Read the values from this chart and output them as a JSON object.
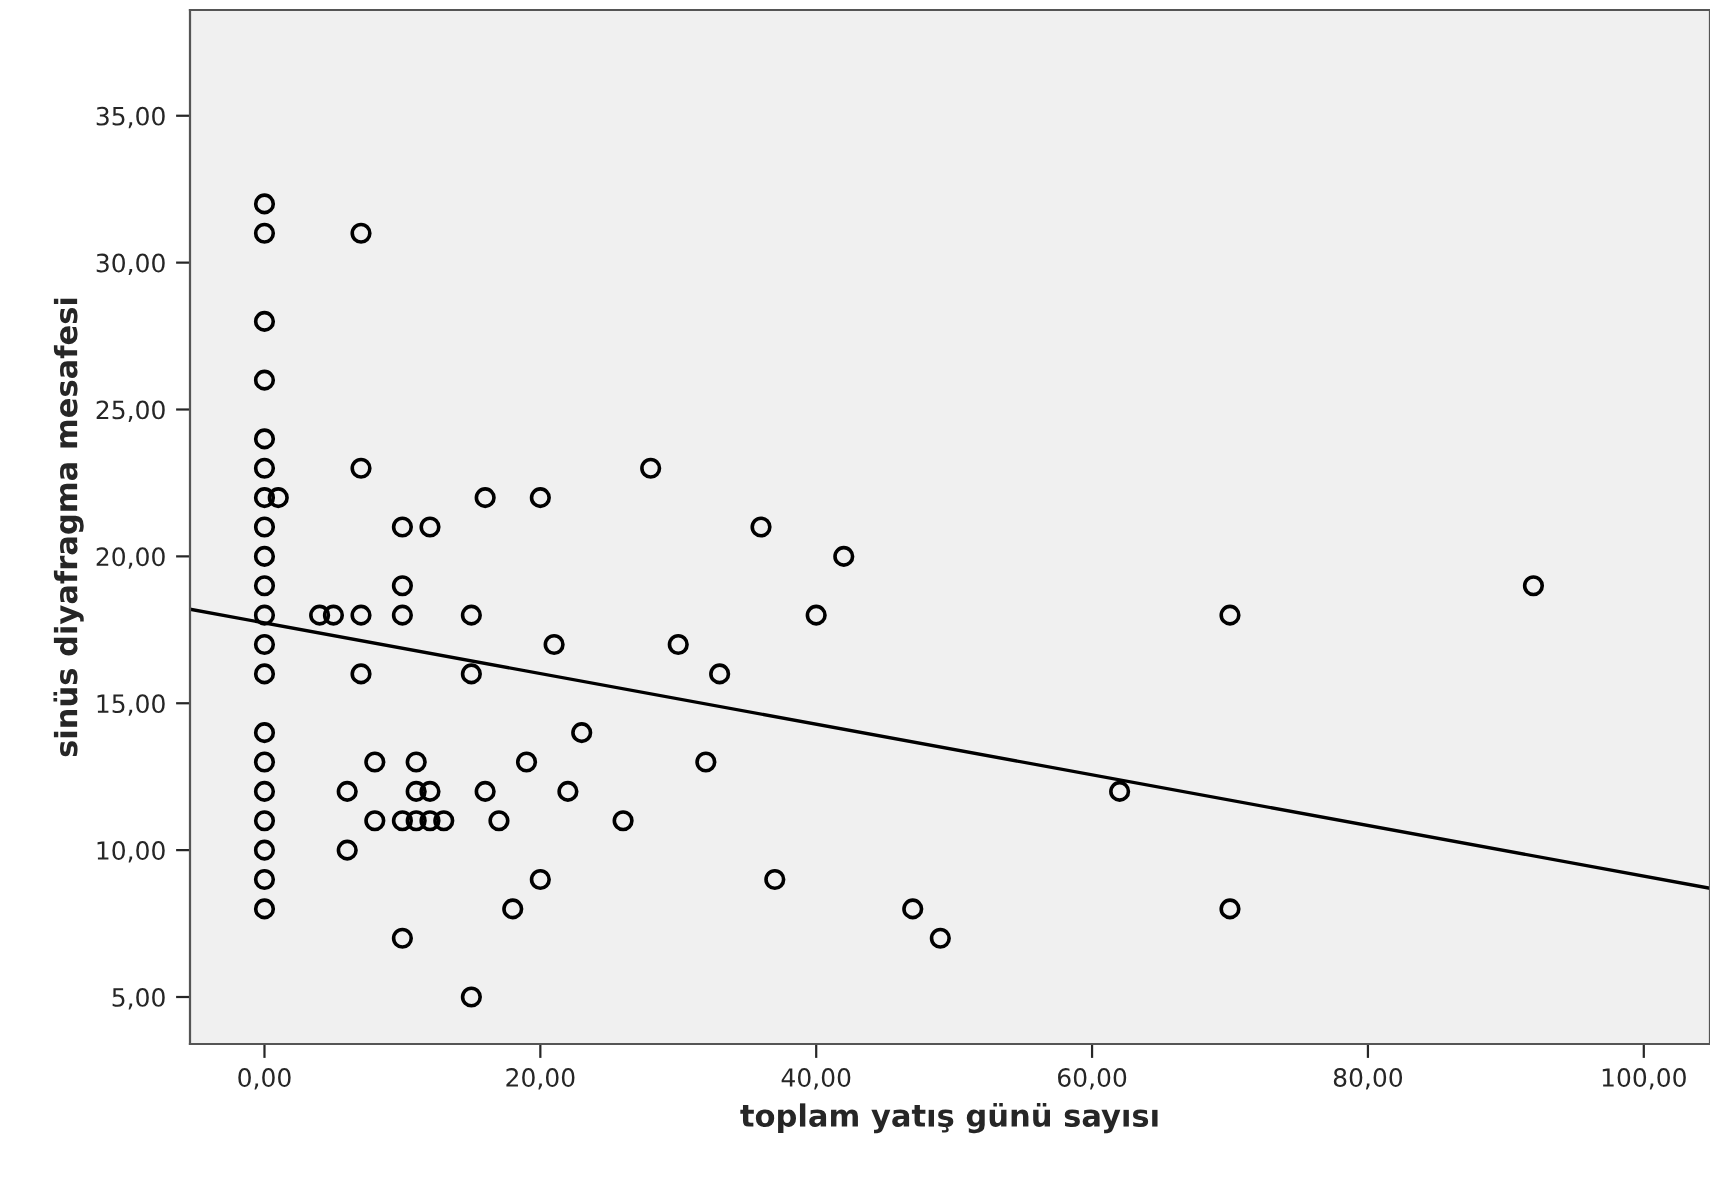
{
  "chart_data": {
    "type": "scatter",
    "xlabel": "toplam yatış günü sayısı",
    "ylabel": "sinüs diyafragma mesafesi",
    "xlim": [
      -5.4,
      104.8
    ],
    "ylim": [
      3.4,
      38.6
    ],
    "xticks": [
      {
        "value": 0,
        "label": "0,00"
      },
      {
        "value": 20,
        "label": "20,00"
      },
      {
        "value": 40,
        "label": "40,00"
      },
      {
        "value": 60,
        "label": "60,00"
      },
      {
        "value": 80,
        "label": "80,00"
      },
      {
        "value": 100,
        "label": "100,00"
      }
    ],
    "yticks": [
      {
        "value": 5,
        "label": "5,00"
      },
      {
        "value": 10,
        "label": "10,00"
      },
      {
        "value": 15,
        "label": "15,00"
      },
      {
        "value": 20,
        "label": "20,00"
      },
      {
        "value": 25,
        "label": "25,00"
      },
      {
        "value": 30,
        "label": "30,00"
      },
      {
        "value": 35,
        "label": "35,00"
      }
    ],
    "grid": false,
    "legend": false,
    "marker": "circle",
    "series": [
      {
        "color": "#000000",
        "x": [
          0,
          0,
          0,
          0,
          0,
          0,
          0,
          0,
          0,
          0,
          0,
          0,
          0,
          0,
          0,
          0,
          0,
          0,
          0,
          0,
          1,
          7,
          7,
          7,
          7,
          4,
          5,
          10,
          12,
          16,
          20,
          28,
          10,
          10,
          15,
          40,
          42,
          36,
          21,
          30,
          15,
          33,
          23,
          8,
          11,
          19,
          32,
          6,
          11,
          12,
          16,
          22,
          62,
          8,
          10,
          11,
          12,
          13,
          17,
          26,
          6,
          20,
          37,
          18,
          47,
          70,
          10,
          49,
          15,
          70,
          92
        ],
        "values": [
          32,
          31,
          28,
          26,
          24,
          23,
          22,
          21,
          20,
          19,
          18,
          17,
          16,
          14,
          13,
          12,
          11,
          10,
          9,
          8,
          22,
          31,
          23,
          18,
          16,
          18,
          18,
          21,
          21,
          22,
          22,
          23,
          19,
          18,
          18,
          18,
          20,
          21,
          17,
          17,
          16,
          16,
          14,
          13,
          13,
          13,
          13,
          12,
          12,
          12,
          12,
          12,
          12,
          11,
          11,
          11,
          11,
          11,
          11,
          11,
          10,
          9,
          9,
          8,
          8,
          8,
          7,
          7,
          5,
          18,
          19
        ]
      },
      {
        "type": "line",
        "color": "#000000",
        "marker": "none",
        "x": [
          -5.4,
          104.8
        ],
        "values": [
          18.2,
          8.7
        ]
      }
    ]
  }
}
